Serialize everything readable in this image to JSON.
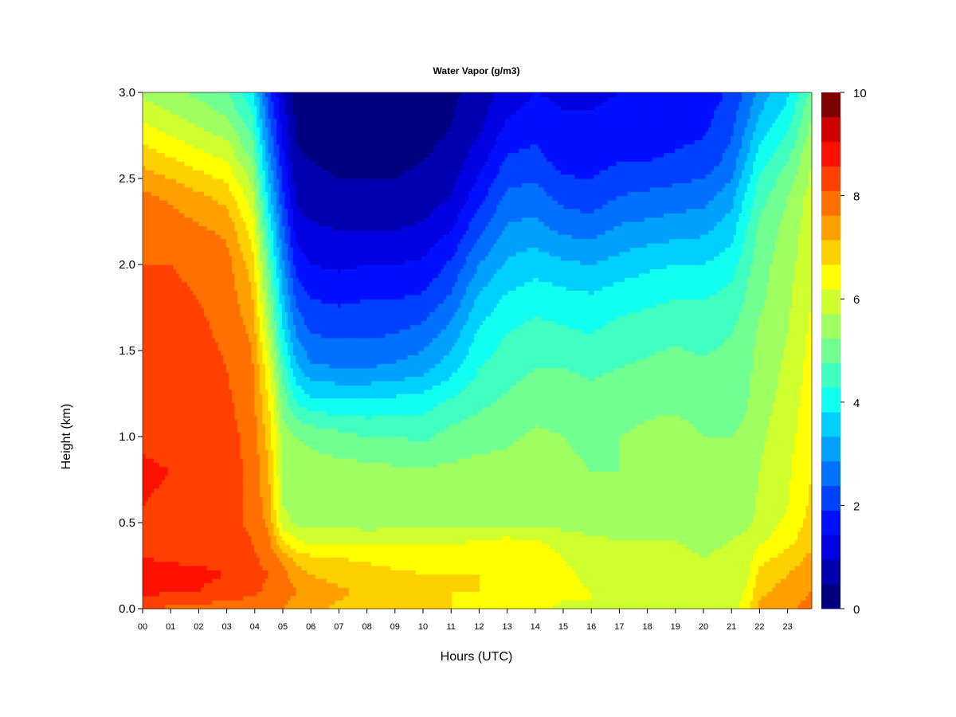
{
  "chart_data": {
    "type": "heatmap",
    "title": "Water Vapor (g/m3)",
    "xlabel": "Hours (UTC)",
    "ylabel": "Height (km)",
    "xlim": [
      0,
      23.85
    ],
    "ylim": [
      0,
      3.0
    ],
    "x_ticks": [
      "00",
      "01",
      "02",
      "03",
      "04",
      "05",
      "06",
      "07",
      "08",
      "09",
      "10",
      "11",
      "12",
      "13",
      "14",
      "15",
      "16",
      "17",
      "18",
      "19",
      "20",
      "21",
      "22",
      "23"
    ],
    "y_ticks": [
      "0.0",
      "0.5",
      "1.0",
      "1.5",
      "2.0",
      "2.5",
      "3.0"
    ],
    "colorbar": {
      "range": [
        0,
        10
      ],
      "levels": 20,
      "tick_labels": [
        "0",
        "2",
        "4",
        "6",
        "8",
        "10"
      ],
      "colors": [
        "#000080",
        "#0000b0",
        "#0000e0",
        "#0010ff",
        "#0040ff",
        "#0070ff",
        "#00a0ff",
        "#00d0ff",
        "#10fff0",
        "#40ffc0",
        "#70ff90",
        "#a0ff60",
        "#d0ff30",
        "#ffff00",
        "#ffd000",
        "#ffa000",
        "#ff7000",
        "#ff4000",
        "#ff1000",
        "#d00000",
        "#800000"
      ]
    },
    "x_hours": [
      0,
      1,
      2,
      3,
      3.9,
      4.5,
      5.0,
      5.5,
      6,
      7,
      8,
      9,
      10,
      11,
      12,
      13,
      14,
      15,
      16,
      17,
      18,
      19,
      20,
      21,
      21.6,
      22,
      23,
      23.85
    ],
    "y_km": [
      0.0,
      0.1,
      0.2,
      0.3,
      0.4,
      0.5,
      0.6,
      0.8,
      1.0,
      1.2,
      1.4,
      1.6,
      1.8,
      2.0,
      2.2,
      2.4,
      2.6,
      2.8,
      3.0
    ],
    "z_values": [
      [
        8.5,
        8.4,
        8.3,
        8.2,
        8.2,
        8.1,
        8.0,
        7.8,
        7.6,
        7.4,
        7.3,
        7.2,
        7.0,
        7.0,
        6.8,
        6.9,
        6.6,
        6.4,
        6.5,
        6.3,
        6.1,
        6.0,
        6.1,
        6.2,
        7.0,
        7.6,
        7.9,
        8.2
      ],
      [
        9.2,
        9.0,
        9.0,
        8.8,
        8.6,
        8.4,
        8.2,
        8.0,
        7.8,
        7.6,
        7.4,
        7.2,
        7.1,
        7.0,
        7.0,
        6.9,
        6.8,
        6.6,
        6.5,
        6.3,
        6.2,
        6.1,
        6.1,
        6.2,
        6.6,
        7.4,
        7.7,
        8.0
      ],
      [
        9.3,
        9.2,
        9.1,
        9.0,
        8.7,
        8.5,
        8.2,
        7.7,
        7.5,
        7.3,
        7.2,
        7.1,
        7.0,
        7.0,
        7.0,
        6.8,
        6.8,
        6.6,
        6.4,
        6.3,
        6.2,
        6.1,
        6.1,
        6.2,
        6.4,
        7.2,
        7.5,
        7.8
      ],
      [
        9.0,
        8.9,
        8.9,
        8.8,
        8.6,
        8.3,
        7.8,
        7.3,
        7.1,
        7.0,
        6.9,
        6.8,
        6.8,
        6.8,
        6.9,
        6.7,
        6.8,
        6.5,
        6.2,
        6.2,
        6.2,
        6.1,
        6.0,
        6.1,
        6.3,
        6.8,
        7.2,
        7.6
      ],
      [
        8.9,
        8.8,
        8.8,
        8.7,
        8.5,
        8.1,
        7.0,
        6.5,
        6.3,
        6.3,
        6.3,
        6.4,
        6.4,
        6.4,
        6.5,
        6.6,
        6.5,
        6.3,
        6.1,
        6.0,
        6.0,
        6.0,
        5.9,
        6.0,
        6.2,
        6.4,
        6.8,
        7.4
      ],
      [
        8.9,
        8.8,
        8.8,
        8.7,
        8.4,
        7.9,
        6.2,
        5.9,
        5.9,
        5.9,
        5.8,
        5.8,
        5.8,
        5.8,
        5.9,
        5.9,
        5.9,
        5.8,
        5.7,
        5.7,
        5.6,
        5.6,
        5.6,
        5.7,
        5.9,
        6.2,
        6.6,
        7.2
      ],
      [
        9.0,
        8.9,
        8.8,
        8.7,
        8.4,
        7.7,
        6.0,
        5.8,
        5.8,
        5.8,
        5.8,
        5.8,
        5.8,
        5.7,
        5.8,
        5.8,
        5.8,
        5.7,
        5.6,
        5.6,
        5.5,
        5.6,
        5.6,
        5.7,
        5.8,
        6.1,
        6.5,
        7.1
      ],
      [
        9.1,
        9.0,
        8.9,
        8.7,
        8.4,
        7.5,
        5.9,
        5.8,
        5.7,
        5.7,
        5.7,
        5.6,
        5.6,
        5.6,
        5.7,
        5.7,
        5.8,
        5.6,
        5.5,
        5.5,
        5.6,
        5.6,
        5.6,
        5.6,
        5.7,
        6.0,
        6.4,
        7.0
      ],
      [
        8.9,
        8.8,
        8.8,
        8.7,
        8.3,
        7.3,
        5.8,
        5.5,
        5.4,
        5.2,
        5.0,
        5.0,
        4.9,
        5.2,
        5.3,
        5.4,
        5.6,
        5.5,
        5.4,
        5.5,
        5.6,
        5.7,
        5.5,
        5.5,
        5.6,
        5.9,
        6.3,
        6.9
      ],
      [
        8.8,
        8.7,
        8.7,
        8.6,
        8.2,
        7.0,
        5.3,
        4.5,
        4.2,
        4.1,
        4.1,
        4.2,
        4.3,
        4.6,
        4.9,
        5.1,
        5.3,
        5.3,
        5.2,
        5.3,
        5.4,
        5.4,
        5.3,
        5.3,
        5.5,
        5.8,
        6.2,
        6.8
      ],
      [
        8.8,
        8.8,
        8.7,
        8.5,
        8.1,
        6.6,
        4.8,
        3.6,
        3.1,
        3.0,
        3.0,
        3.1,
        3.3,
        3.8,
        4.5,
        4.8,
        5.0,
        5.0,
        4.9,
        5.0,
        5.1,
        5.2,
        5.1,
        5.2,
        5.4,
        5.7,
        6.1,
        6.7
      ],
      [
        8.7,
        8.7,
        8.6,
        8.4,
        7.9,
        6.0,
        4.1,
        2.9,
        2.5,
        2.4,
        2.4,
        2.5,
        2.7,
        3.2,
        4.1,
        4.5,
        4.7,
        4.6,
        4.5,
        4.7,
        4.8,
        4.9,
        4.8,
        5.0,
        5.3,
        5.6,
        6.0,
        6.6
      ],
      [
        8.6,
        8.6,
        8.5,
        8.3,
        7.6,
        5.5,
        3.6,
        2.4,
        2.0,
        1.9,
        2.0,
        2.0,
        2.1,
        2.6,
        3.6,
        4.1,
        4.3,
        4.2,
        4.1,
        4.3,
        4.4,
        4.5,
        4.5,
        4.7,
        5.1,
        5.4,
        5.9,
        6.5
      ],
      [
        8.5,
        8.5,
        8.4,
        8.2,
        7.3,
        5.0,
        3.1,
        1.8,
        1.5,
        1.4,
        1.5,
        1.5,
        1.6,
        2.1,
        3.0,
        3.6,
        3.8,
        3.6,
        3.5,
        3.7,
        3.9,
        4.0,
        4.0,
        4.3,
        4.9,
        5.3,
        5.8,
        6.4
      ],
      [
        8.4,
        8.3,
        8.1,
        7.9,
        6.8,
        4.4,
        2.6,
        1.3,
        1.1,
        1.0,
        1.0,
        1.0,
        1.1,
        1.5,
        2.4,
        3.1,
        3.2,
        2.9,
        2.8,
        3.1,
        3.2,
        3.3,
        3.4,
        3.8,
        4.6,
        5.1,
        5.7,
        6.3
      ],
      [
        8.1,
        7.9,
        7.6,
        7.3,
        6.2,
        3.8,
        2.1,
        0.9,
        0.7,
        0.6,
        0.6,
        0.6,
        0.7,
        1.0,
        1.8,
        2.6,
        2.7,
        2.3,
        2.2,
        2.5,
        2.6,
        2.7,
        2.8,
        3.3,
        4.2,
        4.8,
        5.5,
        6.2
      ],
      [
        7.4,
        7.1,
        6.8,
        6.5,
        5.5,
        3.2,
        1.7,
        0.6,
        0.5,
        0.4,
        0.4,
        0.4,
        0.5,
        0.7,
        1.3,
        2.1,
        2.2,
        1.8,
        1.8,
        2.0,
        2.0,
        2.1,
        2.2,
        2.7,
        3.6,
        4.3,
        5.0,
        6.0
      ],
      [
        6.6,
        6.3,
        6.0,
        5.7,
        4.8,
        2.7,
        1.3,
        0.4,
        0.3,
        0.3,
        0.3,
        0.3,
        0.3,
        0.5,
        0.9,
        1.6,
        1.8,
        1.6,
        1.6,
        1.7,
        1.7,
        1.8,
        1.9,
        2.4,
        3.1,
        3.7,
        4.4,
        5.6
      ],
      [
        5.9,
        5.6,
        5.4,
        5.0,
        4.2,
        2.2,
        1.0,
        0.3,
        0.2,
        0.2,
        0.2,
        0.2,
        0.3,
        0.4,
        0.7,
        1.2,
        1.5,
        1.4,
        1.4,
        1.5,
        1.5,
        1.6,
        1.7,
        2.1,
        2.7,
        3.2,
        3.9,
        5.2
      ]
    ]
  }
}
